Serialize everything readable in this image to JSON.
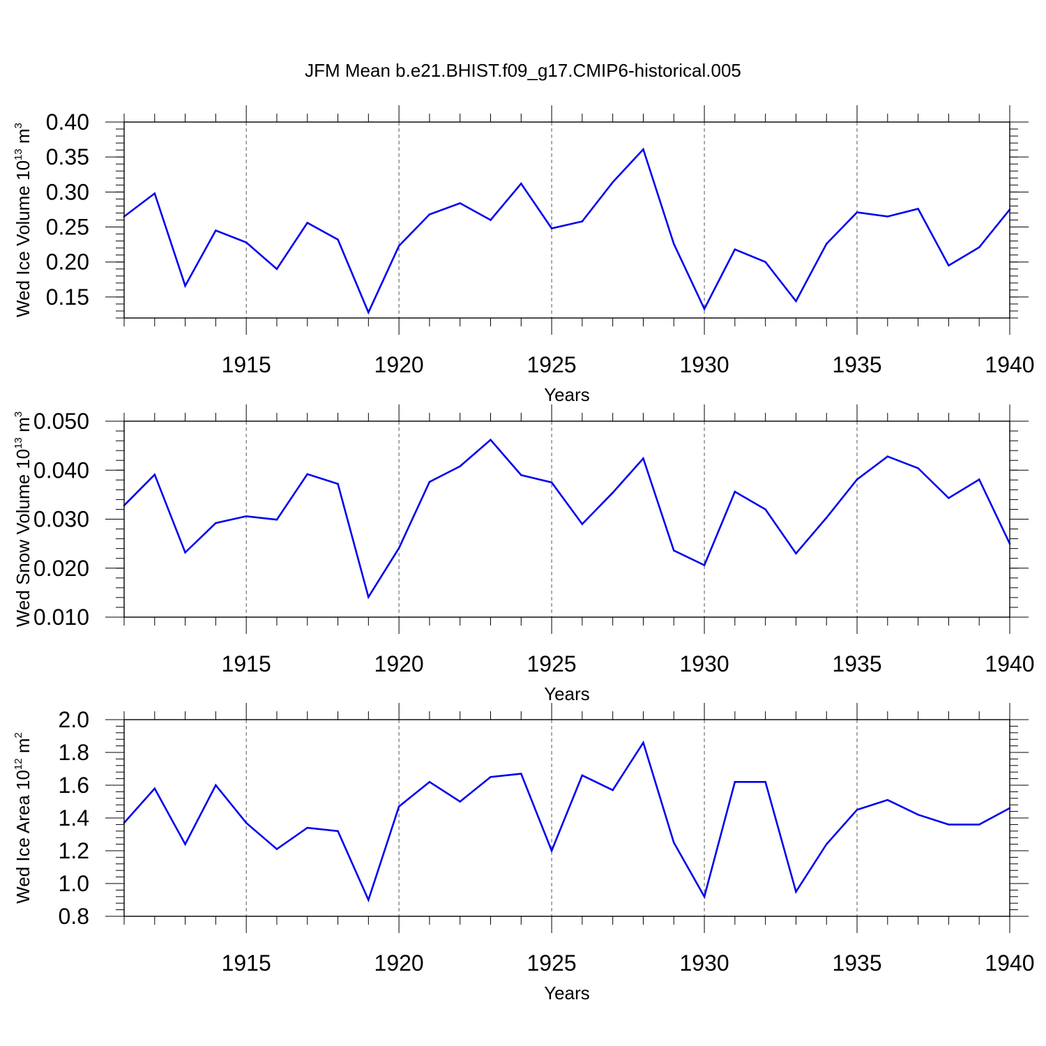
{
  "chart_title": "JFM Mean b.e21.BHIST.f09_g17.CMIP6-historical.005",
  "chart_data": [
    {
      "type": "line",
      "title": "JFM Mean b.e21.BHIST.f09_g17.CMIP6-historical.005",
      "xlabel": "Years",
      "ylabel_main": "Wed Ice Volume 10",
      "ylabel_exp": "13",
      "ylabel_unit": "m",
      "ylabel_unit_exp": "3",
      "xlim": [
        1911,
        1940
      ],
      "ylim": [
        0.12,
        0.4
      ],
      "x_major_ticks": [
        1915,
        1920,
        1925,
        1930,
        1935,
        1940
      ],
      "x_tick_labels": [
        "1915",
        "1920",
        "1925",
        "1930",
        "1935",
        "1940"
      ],
      "y_ticks": [
        0.15,
        0.2,
        0.25,
        0.3,
        0.35,
        0.4
      ],
      "y_tick_labels": [
        "0.15",
        "0.20",
        "0.25",
        "0.30",
        "0.35",
        "0.40"
      ],
      "y_minor_step": 0.01,
      "vertical_grid": "dashed at major x ticks",
      "line_color": "#0000ee",
      "x": [
        1911,
        1912,
        1913,
        1914,
        1915,
        1916,
        1917,
        1918,
        1919,
        1920,
        1921,
        1922,
        1923,
        1924,
        1925,
        1926,
        1927,
        1928,
        1929,
        1930,
        1931,
        1932,
        1933,
        1934,
        1935,
        1936,
        1937,
        1938,
        1939,
        1940
      ],
      "values": [
        0.265,
        0.298,
        0.166,
        0.245,
        0.228,
        0.19,
        0.256,
        0.232,
        0.128,
        0.223,
        0.268,
        0.284,
        0.26,
        0.312,
        0.248,
        0.258,
        0.314,
        0.361,
        0.226,
        0.133,
        0.218,
        0.2,
        0.144,
        0.226,
        0.271,
        0.265,
        0.276,
        0.195,
        0.221,
        0.275
      ]
    },
    {
      "type": "line",
      "xlabel": "Years",
      "ylabel_main": "Wed Snow Volume 10",
      "ylabel_exp": "13",
      "ylabel_unit": "m",
      "ylabel_unit_exp": "3",
      "xlim": [
        1911,
        1940
      ],
      "ylim": [
        0.01,
        0.05
      ],
      "x_major_ticks": [
        1915,
        1920,
        1925,
        1930,
        1935,
        1940
      ],
      "x_tick_labels": [
        "1915",
        "1920",
        "1925",
        "1930",
        "1935",
        "1940"
      ],
      "y_ticks": [
        0.01,
        0.02,
        0.03,
        0.04,
        0.05
      ],
      "y_tick_labels": [
        "0.010",
        "0.020",
        "0.030",
        "0.040",
        "0.050"
      ],
      "y_minor_step": 0.002,
      "vertical_grid": "dashed at major x ticks",
      "line_color": "#0000ee",
      "x": [
        1911,
        1912,
        1913,
        1914,
        1915,
        1916,
        1917,
        1918,
        1919,
        1920,
        1921,
        1922,
        1923,
        1924,
        1925,
        1926,
        1927,
        1928,
        1929,
        1930,
        1931,
        1932,
        1933,
        1934,
        1935,
        1936,
        1937,
        1938,
        1939,
        1940
      ],
      "values": [
        0.0328,
        0.0391,
        0.0232,
        0.0292,
        0.0306,
        0.0299,
        0.0392,
        0.0372,
        0.0141,
        0.0241,
        0.0376,
        0.0408,
        0.0462,
        0.039,
        0.0375,
        0.029,
        0.0354,
        0.0424,
        0.0236,
        0.0206,
        0.0356,
        0.032,
        0.023,
        0.0303,
        0.0381,
        0.0428,
        0.0404,
        0.0343,
        0.0381,
        0.025
      ]
    },
    {
      "type": "line",
      "xlabel": "Years",
      "ylabel_main": "Wed Ice Area 10",
      "ylabel_exp": "12",
      "ylabel_unit": "m",
      "ylabel_unit_exp": "2",
      "xlim": [
        1911,
        1940
      ],
      "ylim": [
        0.8,
        2.0
      ],
      "x_major_ticks": [
        1915,
        1920,
        1925,
        1930,
        1935,
        1940
      ],
      "x_tick_labels": [
        "1915",
        "1920",
        "1925",
        "1930",
        "1935",
        "1940"
      ],
      "y_ticks": [
        0.8,
        1.0,
        1.2,
        1.4,
        1.6,
        1.8,
        2.0
      ],
      "y_tick_labels": [
        "0.8",
        "1.0",
        "1.2",
        "1.4",
        "1.6",
        "1.8",
        "2.0"
      ],
      "y_minor_step": 0.04,
      "vertical_grid": "dashed at major x ticks",
      "line_color": "#0000ee",
      "x": [
        1911,
        1912,
        1913,
        1914,
        1915,
        1916,
        1917,
        1918,
        1919,
        1920,
        1921,
        1922,
        1923,
        1924,
        1925,
        1926,
        1927,
        1928,
        1929,
        1930,
        1931,
        1932,
        1933,
        1934,
        1935,
        1936,
        1937,
        1938,
        1939,
        1940
      ],
      "values": [
        1.37,
        1.58,
        1.24,
        1.6,
        1.37,
        1.21,
        1.34,
        1.32,
        0.9,
        1.47,
        1.62,
        1.5,
        1.65,
        1.67,
        1.2,
        1.66,
        1.57,
        1.86,
        1.25,
        0.92,
        1.62,
        1.62,
        0.95,
        1.24,
        1.45,
        1.51,
        1.42,
        1.36,
        1.36,
        1.46
      ]
    }
  ]
}
